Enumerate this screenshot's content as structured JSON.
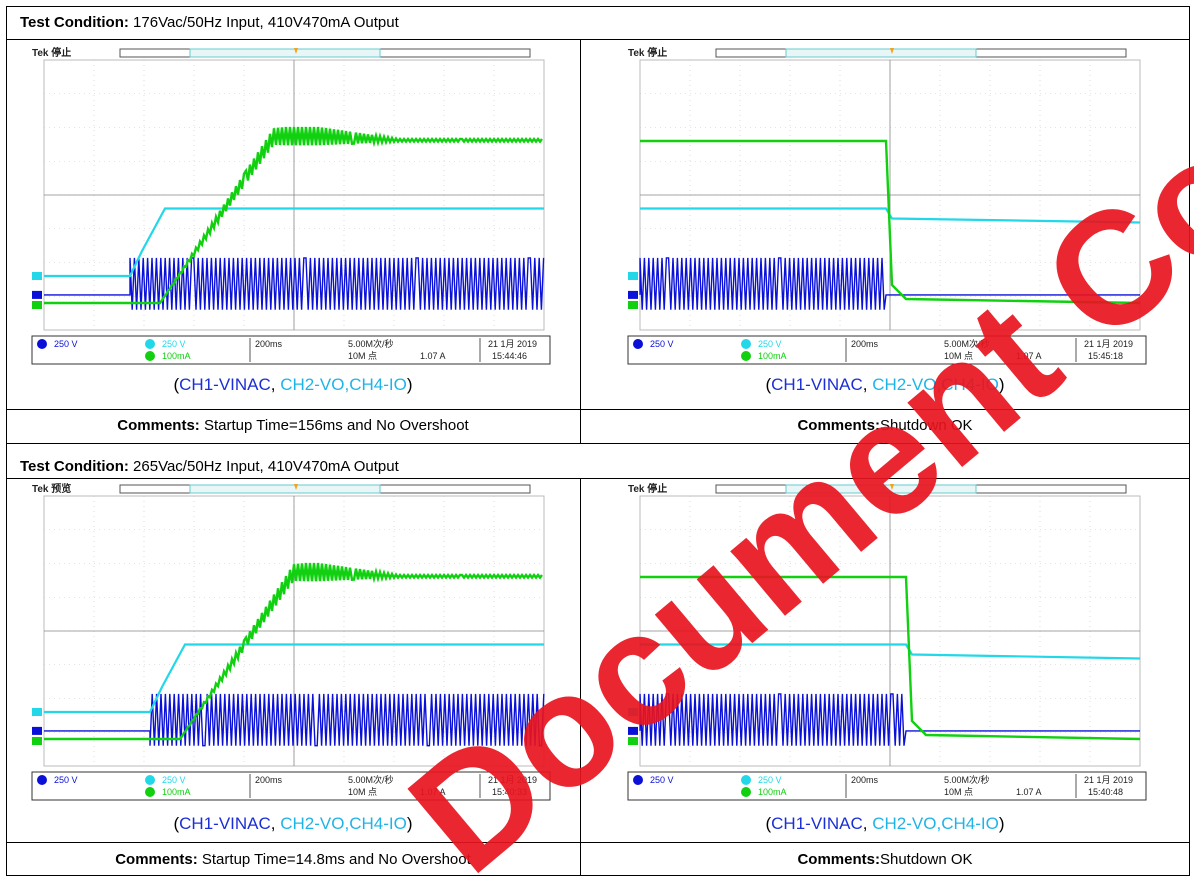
{
  "sections": [
    {
      "condition_label": "Test Condition:",
      "condition_text": " 176Vac/50Hz Input, 410V470mA Output",
      "panels": [
        {
          "header": "Tek 停止",
          "ch1": "250 V",
          "ch2": "250 V",
          "ch4": "100mA",
          "timebase": "200ms",
          "rate": "5.00M次/秒",
          "points": "10M 点",
          "trigger": "1.07 A",
          "date": "21 1月 2019",
          "time": "15:44:46",
          "caption": {
            "p1": "(",
            "ch1": "CH1-VINAC",
            "sep": ", ",
            "ch2": "CH2-VO,",
            "ch4": "CH4-IO",
            "p2": ")"
          },
          "comment_label": "Comments:",
          "comment_text": " Startup Time=156ms and No Overshoot"
        },
        {
          "header": "Tek 停止",
          "ch1": "250 V",
          "ch2": "250 V",
          "ch4": "100mA",
          "timebase": "200ms",
          "rate": "5.00M次/秒",
          "points": "10M 点",
          "trigger": "1.07 A",
          "date": "21 1月 2019",
          "time": "15:45:18",
          "caption": {
            "p1": "(",
            "ch1": "CH1-VINAC",
            "sep": ", ",
            "ch2": "CH2-VO,",
            "ch4": "CH4-IO",
            "p2": ")"
          },
          "comment_label": "Comments:",
          "comment_text": "Shutdown OK"
        }
      ]
    },
    {
      "condition_label": "Test Condition:",
      "condition_text": " 265Vac/50Hz Input, 410V470mA Output",
      "panels": [
        {
          "header": "Tek 预览",
          "ch1": "250 V",
          "ch2": "250 V",
          "ch4": "100mA",
          "timebase": "200ms",
          "rate": "5.00M次/秒",
          "points": "10M 点",
          "trigger": "1.07 A",
          "date": "21 1月 2019",
          "time": "15:40:33",
          "caption": {
            "p1": "(",
            "ch1": "CH1-VINAC",
            "sep": ", ",
            "ch2": "CH2-VO,",
            "ch4": "CH4-IO",
            "p2": ")"
          },
          "comment_label": "Comments:",
          "comment_text": " Startup Time=14.8ms and No Overshoot"
        },
        {
          "header": "Tek 停止",
          "ch1": "250 V",
          "ch2": "250 V",
          "ch4": "100mA",
          "timebase": "200ms",
          "rate": "5.00M次/秒",
          "points": "10M 点",
          "trigger": "1.07 A",
          "date": "21 1月 2019",
          "time": "15:40:48",
          "caption": {
            "p1": "(",
            "ch1": "CH1-VINAC",
            "sep": ", ",
            "ch2": "CH2-VO,",
            "ch4": "CH4-IO",
            "p2": ")"
          },
          "comment_label": "Comments:",
          "comment_text": "Shutdown OK"
        }
      ]
    }
  ],
  "colors": {
    "ch1": "#0a10d8",
    "ch2": "#22d8e8",
    "ch4": "#10d010",
    "watermark": "#e8141e"
  },
  "watermark": "Document Confidential"
}
